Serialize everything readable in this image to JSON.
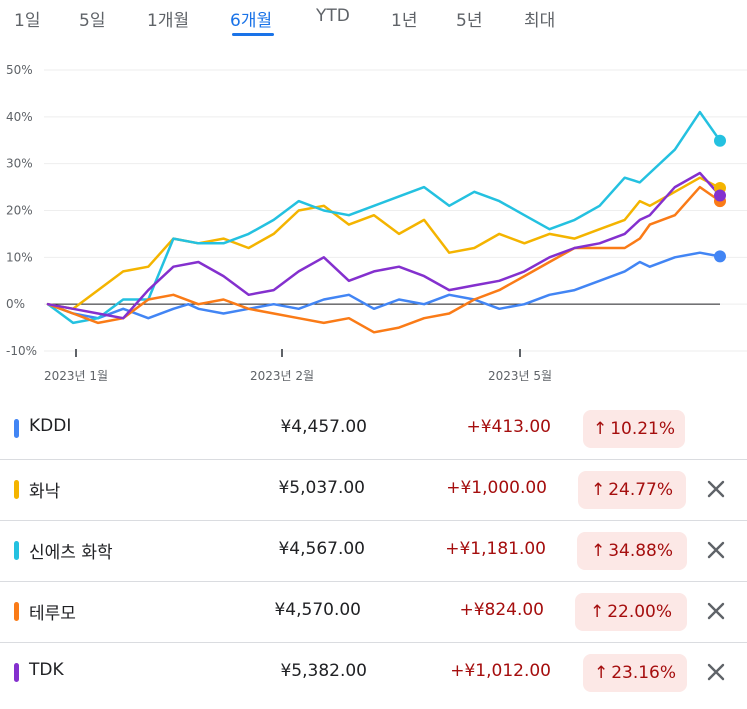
{
  "tabs": [
    {
      "label": "1일"
    },
    {
      "label": "5일"
    },
    {
      "label": "1개월"
    },
    {
      "label": "6개월"
    },
    {
      "label": "YTD"
    },
    {
      "label": "1년"
    },
    {
      "label": "5년"
    },
    {
      "label": "최대"
    }
  ],
  "active_tab": "6개월",
  "stocks": [
    {
      "name": "KDDI",
      "price": "¥4,457.00",
      "change": "+¥413.00",
      "percent": "10.21%",
      "color": "#4285f4",
      "removable": false
    },
    {
      "name": "화낙",
      "price": "¥5,037.00",
      "change": "+¥1,000.00",
      "percent": "24.77%",
      "color": "#f4b400",
      "removable": true
    },
    {
      "name": "신에츠 화학",
      "price": "¥4,567.00",
      "change": "+¥1,181.00",
      "percent": "34.88%",
      "color": "#24c1e0",
      "removable": true
    },
    {
      "name": "테루모",
      "price": "¥4,570.00",
      "change": "+¥824.00",
      "percent": "22.00%",
      "color": "#fa7b17",
      "removable": true
    },
    {
      "name": "TDK",
      "price": "¥5,382.00",
      "change": "+¥1,012.00",
      "percent": "23.16%",
      "color": "#8430ce",
      "removable": true
    }
  ],
  "chart_data": {
    "type": "line",
    "y_ticks": [
      "50%",
      "40%",
      "30%",
      "20%",
      "10%",
      "0%",
      "-10%"
    ],
    "x_ticks": [
      "2023년 1월",
      "2023년 2월",
      "2023년 5월"
    ],
    "ylim": [
      -10,
      50
    ],
    "x_unit": "trading day index (0–135)",
    "y_unit": "percent change",
    "baseline": 0,
    "series": [
      {
        "name": "KDDI",
        "color": "#4285f4",
        "points": [
          [
            0,
            0
          ],
          [
            5,
            -2
          ],
          [
            10,
            -3
          ],
          [
            15,
            -1
          ],
          [
            20,
            -3
          ],
          [
            25,
            -1
          ],
          [
            28,
            0
          ],
          [
            30,
            -1
          ],
          [
            35,
            -2
          ],
          [
            40,
            -1
          ],
          [
            45,
            0
          ],
          [
            50,
            -1
          ],
          [
            55,
            1
          ],
          [
            60,
            2
          ],
          [
            65,
            -1
          ],
          [
            70,
            1
          ],
          [
            75,
            0
          ],
          [
            80,
            2
          ],
          [
            85,
            1
          ],
          [
            90,
            -1
          ],
          [
            95,
            0
          ],
          [
            100,
            2
          ],
          [
            105,
            3
          ],
          [
            110,
            5
          ],
          [
            115,
            7
          ],
          [
            118,
            9
          ],
          [
            120,
            8
          ],
          [
            125,
            10
          ],
          [
            130,
            11
          ],
          [
            134,
            10.2
          ]
        ]
      },
      {
        "name": "화낙",
        "color": "#f4b400",
        "points": [
          [
            0,
            0
          ],
          [
            5,
            -1
          ],
          [
            10,
            3
          ],
          [
            15,
            7
          ],
          [
            20,
            8
          ],
          [
            25,
            14
          ],
          [
            30,
            13
          ],
          [
            35,
            14
          ],
          [
            40,
            12
          ],
          [
            45,
            15
          ],
          [
            50,
            20
          ],
          [
            55,
            21
          ],
          [
            60,
            17
          ],
          [
            65,
            19
          ],
          [
            70,
            15
          ],
          [
            75,
            18
          ],
          [
            80,
            11
          ],
          [
            85,
            12
          ],
          [
            90,
            15
          ],
          [
            95,
            13
          ],
          [
            100,
            15
          ],
          [
            105,
            14
          ],
          [
            110,
            16
          ],
          [
            115,
            18
          ],
          [
            118,
            22
          ],
          [
            120,
            21
          ],
          [
            125,
            24
          ],
          [
            130,
            27
          ],
          [
            134,
            24.8
          ]
        ]
      },
      {
        "name": "신에츠 화학",
        "color": "#24c1e0",
        "points": [
          [
            0,
            0
          ],
          [
            5,
            -4
          ],
          [
            10,
            -3
          ],
          [
            15,
            1
          ],
          [
            20,
            1
          ],
          [
            25,
            14
          ],
          [
            30,
            13
          ],
          [
            35,
            13
          ],
          [
            40,
            15
          ],
          [
            45,
            18
          ],
          [
            50,
            22
          ],
          [
            55,
            20
          ],
          [
            60,
            19
          ],
          [
            65,
            21
          ],
          [
            70,
            23
          ],
          [
            75,
            25
          ],
          [
            80,
            21
          ],
          [
            85,
            24
          ],
          [
            90,
            22
          ],
          [
            95,
            19
          ],
          [
            100,
            16
          ],
          [
            105,
            18
          ],
          [
            110,
            21
          ],
          [
            115,
            27
          ],
          [
            118,
            26
          ],
          [
            120,
            28
          ],
          [
            125,
            33
          ],
          [
            130,
            41
          ],
          [
            134,
            34.9
          ]
        ]
      },
      {
        "name": "테루모",
        "color": "#fa7b17",
        "points": [
          [
            0,
            0
          ],
          [
            5,
            -2
          ],
          [
            10,
            -4
          ],
          [
            15,
            -3
          ],
          [
            20,
            1
          ],
          [
            25,
            2
          ],
          [
            30,
            0
          ],
          [
            35,
            1
          ],
          [
            40,
            -1
          ],
          [
            45,
            -2
          ],
          [
            50,
            -3
          ],
          [
            55,
            -4
          ],
          [
            60,
            -3
          ],
          [
            65,
            -6
          ],
          [
            70,
            -5
          ],
          [
            75,
            -3
          ],
          [
            80,
            -2
          ],
          [
            85,
            1
          ],
          [
            90,
            3
          ],
          [
            95,
            6
          ],
          [
            100,
            9
          ],
          [
            105,
            12
          ],
          [
            110,
            12
          ],
          [
            115,
            12
          ],
          [
            118,
            14
          ],
          [
            120,
            17
          ],
          [
            125,
            19
          ],
          [
            130,
            25
          ],
          [
            134,
            22
          ]
        ]
      },
      {
        "name": "TDK",
        "color": "#8430ce",
        "points": [
          [
            0,
            0
          ],
          [
            5,
            -1
          ],
          [
            10,
            -2
          ],
          [
            15,
            -3
          ],
          [
            20,
            3
          ],
          [
            25,
            8
          ],
          [
            30,
            9
          ],
          [
            35,
            6
          ],
          [
            40,
            2
          ],
          [
            45,
            3
          ],
          [
            50,
            7
          ],
          [
            55,
            10
          ],
          [
            60,
            5
          ],
          [
            65,
            7
          ],
          [
            70,
            8
          ],
          [
            75,
            6
          ],
          [
            80,
            3
          ],
          [
            85,
            4
          ],
          [
            90,
            5
          ],
          [
            95,
            7
          ],
          [
            100,
            10
          ],
          [
            105,
            12
          ],
          [
            110,
            13
          ],
          [
            115,
            15
          ],
          [
            118,
            18
          ],
          [
            120,
            19
          ],
          [
            125,
            25
          ],
          [
            130,
            28
          ],
          [
            134,
            23.2
          ]
        ]
      }
    ]
  }
}
